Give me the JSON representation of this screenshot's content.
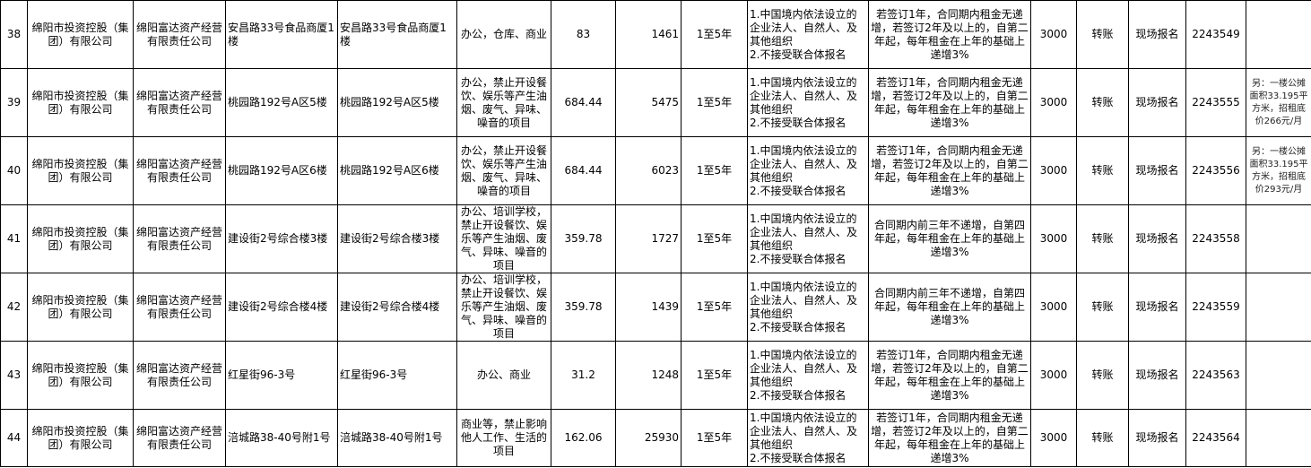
{
  "rows": [
    {
      "no": "38",
      "owner": "绵阳市投资控股（集团）有限公司",
      "manager": "绵阳富达资产经营有限责任公司",
      "location": "安昌路33号食品商厦1楼",
      "property": "安昌路33号食品商厦1楼",
      "use": "办公，仓库、商业",
      "area": "83",
      "price": "1461",
      "term": "1至5年",
      "requirements": "1.中国境内依法设立的企业法人、自然人、及其他组织\n2.不接受联合体报名",
      "increase": "若签订1年，合同期内租金无递增，若签订2年及以上的，自第二年起，每年租金在上年的基础上递增3%",
      "deposit": "3000",
      "payment": "转账",
      "registration": "现场报名",
      "code": "2243549",
      "note": ""
    },
    {
      "no": "39",
      "owner": "绵阳市投资控股（集团）有限公司",
      "manager": "绵阳富达资产经营有限责任公司",
      "location": "桃园路192号A区5楼",
      "property": "桃园路192号A区5楼",
      "use": "办公，禁止开设餐饮、娱乐等产生油烟、废气、异味、噪音的项目",
      "area": "684.44",
      "price": "5475",
      "term": "1至5年",
      "requirements": "1.中国境内依法设立的企业法人、自然人、及其他组织\n2.不接受联合体报名",
      "increase": "若签订1年，合同期内租金无递增，若签订2年及以上的，自第二年起，每年租金在上年的基础上递增3%",
      "deposit": "3000",
      "payment": "转账",
      "registration": "现场报名",
      "code": "2243555",
      "note": "另：一楼公摊面积33.195平方米，招租底价266元/月"
    },
    {
      "no": "40",
      "owner": "绵阳市投资控股（集团）有限公司",
      "manager": "绵阳富达资产经营有限责任公司",
      "location": "桃园路192号A区6楼",
      "property": "桃园路192号A区6楼",
      "use": "办公，禁止开设餐饮、娱乐等产生油烟、废气、异味、噪音的项目",
      "area": "684.44",
      "price": "6023",
      "term": "1至5年",
      "requirements": "1.中国境内依法设立的企业法人、自然人、及其他组织\n2.不接受联合体报名",
      "increase": "若签订1年，合同期内租金无递增，若签订2年及以上的，自第二年起，每年租金在上年的基础上递增3%",
      "deposit": "3000",
      "payment": "转账",
      "registration": "现场报名",
      "code": "2243556",
      "note": "另：一楼公摊面积33.195平方米，招租底价293元/月"
    },
    {
      "no": "41",
      "owner": "绵阳市投资控股（集团）有限公司",
      "manager": "绵阳富达资产经营有限责任公司",
      "location": "建设街2号综合楼3楼",
      "property": "建设街2号综合楼3楼",
      "use": "办公、培训学校，禁止开设餐饮、娱乐等产生油烟、废气、异味、噪音的项目",
      "area": "359.78",
      "price": "1727",
      "term": "1至5年",
      "requirements": "1.中国境内依法设立的企业法人、自然人、及其他组织\n2.不接受联合体报名",
      "increase": "合同期内前三年不递增，自第四年起，每年租金在上年的基础上递增3%",
      "deposit": "3000",
      "payment": "转账",
      "registration": "现场报名",
      "code": "2243558",
      "note": ""
    },
    {
      "no": "42",
      "owner": "绵阳市投资控股（集团）有限公司",
      "manager": "绵阳富达资产经营有限责任公司",
      "location": "建设街2号综合楼4楼",
      "property": "建设街2号综合楼4楼",
      "use": "办公、培训学校，禁止开设餐饮、娱乐等产生油烟、废气、异味、噪音的项目",
      "area": "359.78",
      "price": "1439",
      "term": "1至5年",
      "requirements": "1.中国境内依法设立的企业法人、自然人、及其他组织\n2.不接受联合体报名",
      "increase": "合同期内前三年不递增，自第四年起，每年租金在上年的基础上递增3%",
      "deposit": "3000",
      "payment": "转账",
      "registration": "现场报名",
      "code": "2243559",
      "note": ""
    },
    {
      "no": "43",
      "owner": "绵阳市投资控股（集团）有限公司",
      "manager": "绵阳富达资产经营有限责任公司",
      "location": "红星街96-3号",
      "property": "红星街96-3号",
      "use": "办公、商业",
      "area": "31.2",
      "price": "1248",
      "term": "1至5年",
      "requirements": "1.中国境内依法设立的企业法人、自然人、及其他组织\n2.不接受联合体报名",
      "increase": "若签订1年，合同期内租金无递增，若签订2年及以上的，自第二年起，每年租金在上年的基础上递增3%",
      "deposit": "3000",
      "payment": "转账",
      "registration": "现场报名",
      "code": "2243563",
      "note": ""
    },
    {
      "no": "44",
      "owner": "绵阳市投资控股（集团）有限公司",
      "manager": "绵阳富达资产经营有限责任公司",
      "location": "涪城路38-40号附1号",
      "property": "涪城路38-40号附1号",
      "use": "商业等，禁止影响他人工作、生活的项目",
      "area": "162.06",
      "price": "25930",
      "term": "1至5年",
      "requirements": "1.中国境内依法设立的企业法人、自然人、及其他组织\n2.不接受联合体报名",
      "increase": "若签订1年，合同期内租金无递增，若签订2年及以上的，自第二年起，每年租金在上年的基础上递增3%",
      "deposit": "3000",
      "payment": "转账",
      "registration": "现场报名",
      "code": "2243564",
      "note": ""
    }
  ]
}
